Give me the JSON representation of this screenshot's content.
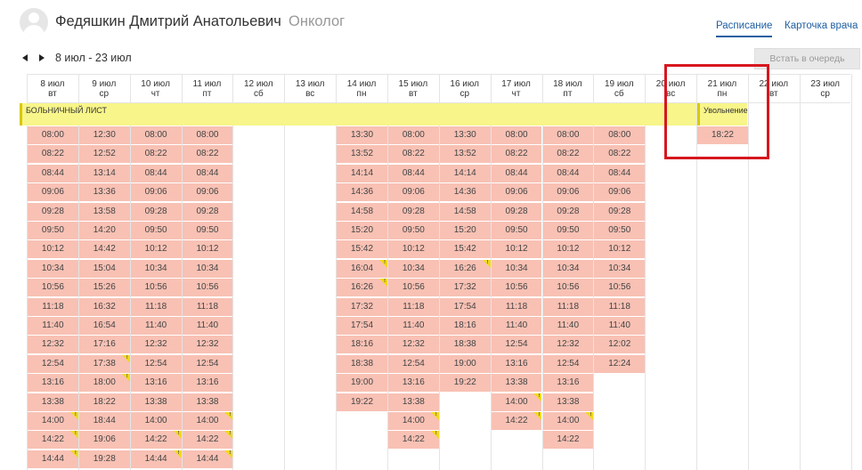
{
  "doctor": {
    "name": "Федяшкин Дмитрий Анатольевич",
    "specialty": "Онколог"
  },
  "tabs": {
    "schedule": "Расписание",
    "card": "Карточка врача"
  },
  "nav": {
    "range": "8 июл - 23 июл",
    "queue_button": "Встать в очередь"
  },
  "colors": {
    "slot": "#f8c1b4",
    "band": "#f8f58a",
    "accent": "#1f5fa3",
    "highlight": "#d6171f",
    "warning": "#f2d81a"
  },
  "bands": [
    {
      "label": "БОЛЬНИЧНЫЙ ЛИСТ",
      "from": 0,
      "to": 12
    },
    {
      "label": "Увольнение",
      "from": 13,
      "to": 13
    }
  ],
  "days": [
    {
      "date": "8 июл",
      "dow": "вт",
      "slots": [
        "08:00",
        "08:22",
        "08:44",
        "09:06",
        "09:28",
        "09:50",
        "10:12",
        "10:34",
        "10:56",
        "11:18",
        "11:40",
        "12:32",
        "12:54",
        "13:16",
        "13:38",
        "14:00",
        "14:22",
        "14:44"
      ],
      "warnings": [
        15,
        16,
        17
      ]
    },
    {
      "date": "9 июл",
      "dow": "ср",
      "slots": [
        "12:30",
        "12:52",
        "13:14",
        "13:36",
        "13:58",
        "14:20",
        "14:42",
        "15:04",
        "15:26",
        "16:32",
        "16:54",
        "17:16",
        "17:38",
        "18:00",
        "18:22",
        "18:44",
        "19:06",
        "19:28"
      ],
      "warnings": [
        12,
        13
      ]
    },
    {
      "date": "10 июл",
      "dow": "чт",
      "slots": [
        "08:00",
        "08:22",
        "08:44",
        "09:06",
        "09:28",
        "09:50",
        "10:12",
        "10:34",
        "10:56",
        "11:18",
        "11:40",
        "12:32",
        "12:54",
        "13:16",
        "13:38",
        "14:00",
        "14:22",
        "14:44"
      ],
      "warnings": [
        16,
        17
      ]
    },
    {
      "date": "11 июл",
      "dow": "пт",
      "slots": [
        "08:00",
        "08:22",
        "08:44",
        "09:06",
        "09:28",
        "09:50",
        "10:12",
        "10:34",
        "10:56",
        "11:18",
        "11:40",
        "12:32",
        "12:54",
        "13:16",
        "13:38",
        "14:00",
        "14:22",
        "14:44"
      ],
      "warnings": [
        15,
        16,
        17
      ]
    },
    {
      "date": "12 июл",
      "dow": "сб",
      "slots": [],
      "warnings": []
    },
    {
      "date": "13 июл",
      "dow": "вс",
      "slots": [],
      "warnings": []
    },
    {
      "date": "14 июл",
      "dow": "пн",
      "slots": [
        "13:30",
        "13:52",
        "14:14",
        "14:36",
        "14:58",
        "15:20",
        "15:42",
        "16:04",
        "16:26",
        "17:32",
        "17:54",
        "18:16",
        "18:38",
        "19:00",
        "19:22"
      ],
      "warnings": [
        7,
        8
      ]
    },
    {
      "date": "15 июл",
      "dow": "вт",
      "slots": [
        "08:00",
        "08:22",
        "08:44",
        "09:06",
        "09:28",
        "09:50",
        "10:12",
        "10:34",
        "10:56",
        "11:18",
        "11:40",
        "12:32",
        "12:54",
        "13:16",
        "13:38",
        "14:00",
        "14:22"
      ],
      "warnings": [
        15,
        16
      ]
    },
    {
      "date": "16 июл",
      "dow": "ср",
      "slots": [
        "13:30",
        "13:52",
        "14:14",
        "14:36",
        "14:58",
        "15:20",
        "15:42",
        "16:26",
        "17:32",
        "17:54",
        "18:16",
        "18:38",
        "19:00",
        "19:22"
      ],
      "warnings": [
        7
      ]
    },
    {
      "date": "17 июл",
      "dow": "чт",
      "slots": [
        "08:00",
        "08:22",
        "08:44",
        "09:06",
        "09:28",
        "09:50",
        "10:12",
        "10:34",
        "10:56",
        "11:18",
        "11:40",
        "12:54",
        "13:16",
        "13:38",
        "14:00",
        "14:22"
      ],
      "warnings": [
        14,
        15
      ]
    },
    {
      "date": "18 июл",
      "dow": "пт",
      "slots": [
        "08:00",
        "08:22",
        "08:44",
        "09:06",
        "09:28",
        "09:50",
        "10:12",
        "10:34",
        "10:56",
        "11:18",
        "11:40",
        "12:32",
        "12:54",
        "13:16",
        "13:38",
        "14:00",
        "14:22"
      ],
      "warnings": [
        15
      ]
    },
    {
      "date": "19 июл",
      "dow": "сб",
      "slots": [
        "08:00",
        "08:22",
        "08:44",
        "09:06",
        "09:28",
        "09:50",
        "10:12",
        "10:34",
        "10:56",
        "11:18",
        "11:40",
        "12:02",
        "12:24"
      ],
      "warnings": []
    },
    {
      "date": "20 июл",
      "dow": "вс",
      "slots": [],
      "warnings": []
    },
    {
      "date": "21 июл",
      "dow": "пн",
      "slots": [
        "18:22"
      ],
      "warnings": []
    },
    {
      "date": "22 июл",
      "dow": "вт",
      "slots": [],
      "warnings": []
    },
    {
      "date": "23 июл",
      "dow": "ср",
      "slots": [],
      "warnings": []
    }
  ]
}
